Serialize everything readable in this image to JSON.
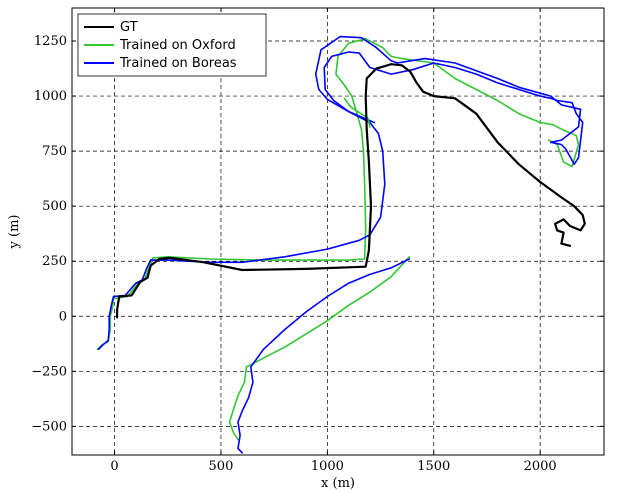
{
  "chart_data": {
    "type": "line",
    "title": "",
    "xlabel": "x (m)",
    "ylabel": "y (m)",
    "xlim": [
      -200,
      2300
    ],
    "ylim": [
      -630,
      1400
    ],
    "xticks": [
      0,
      500,
      1000,
      1500,
      2000
    ],
    "yticks": [
      -500,
      -250,
      0,
      250,
      500,
      750,
      1000,
      1250
    ],
    "xtick_labels": [
      "0",
      "500",
      "1000",
      "1500",
      "2000"
    ],
    "ytick_labels": [
      "−500",
      "−250",
      "0",
      "250",
      "500",
      "750",
      "1000",
      "1250"
    ],
    "grid": true,
    "legend_position": "top-left",
    "series": [
      {
        "name": "GT",
        "color": "#000000",
        "points": [
          [
            12,
            -5
          ],
          [
            12,
            30
          ],
          [
            22,
            90
          ],
          [
            80,
            95
          ],
          [
            120,
            155
          ],
          [
            155,
            175
          ],
          [
            170,
            230
          ],
          [
            210,
            260
          ],
          [
            260,
            265
          ],
          [
            420,
            245
          ],
          [
            600,
            210
          ],
          [
            900,
            215
          ],
          [
            1180,
            225
          ],
          [
            1195,
            300
          ],
          [
            1205,
            500
          ],
          [
            1195,
            700
          ],
          [
            1185,
            850
          ],
          [
            1180,
            1000
          ],
          [
            1185,
            1080
          ],
          [
            1230,
            1125
          ],
          [
            1300,
            1145
          ],
          [
            1350,
            1140
          ],
          [
            1390,
            1110
          ],
          [
            1420,
            1060
          ],
          [
            1450,
            1020
          ],
          [
            1500,
            1000
          ],
          [
            1600,
            990
          ],
          [
            1700,
            920
          ],
          [
            1800,
            790
          ],
          [
            1900,
            690
          ],
          [
            2000,
            610
          ],
          [
            2100,
            540
          ],
          [
            2160,
            500
          ],
          [
            2200,
            460
          ],
          [
            2210,
            420
          ],
          [
            2190,
            390
          ],
          [
            2140,
            410
          ],
          [
            2110,
            440
          ],
          [
            2070,
            420
          ],
          [
            2080,
            390
          ],
          [
            2110,
            380
          ],
          [
            2100,
            330
          ],
          [
            2140,
            320
          ]
        ]
      },
      {
        "name": "Trained on Oxford",
        "color": "#33c633",
        "points": [
          [
            -80,
            -150
          ],
          [
            -60,
            -130
          ],
          [
            -30,
            -115
          ],
          [
            -20,
            -60
          ],
          [
            -20,
            0
          ],
          [
            -10,
            40
          ],
          [
            -5,
            80
          ],
          [
            60,
            90
          ],
          [
            110,
            150
          ],
          [
            140,
            165
          ],
          [
            160,
            215
          ],
          [
            180,
            265
          ],
          [
            250,
            270
          ],
          [
            450,
            260
          ],
          [
            700,
            255
          ],
          [
            900,
            255
          ],
          [
            1100,
            255
          ],
          [
            1175,
            260
          ],
          [
            1180,
            400
          ],
          [
            1175,
            600
          ],
          [
            1170,
            750
          ],
          [
            1160,
            850
          ],
          [
            1115,
            1000
          ],
          [
            1080,
            1050
          ],
          [
            1040,
            1100
          ],
          [
            1050,
            1180
          ],
          [
            1100,
            1240
          ],
          [
            1180,
            1260
          ],
          [
            1260,
            1220
          ],
          [
            1300,
            1180
          ],
          [
            1350,
            1170
          ],
          [
            1500,
            1150
          ],
          [
            1600,
            1080
          ],
          [
            1700,
            1030
          ],
          [
            1800,
            980
          ],
          [
            1900,
            920
          ],
          [
            2000,
            880
          ],
          [
            2060,
            870
          ],
          [
            2100,
            850
          ],
          [
            2170,
            820
          ],
          [
            2180,
            780
          ],
          [
            2150,
            680
          ],
          [
            2110,
            700
          ],
          [
            2080,
            780
          ],
          [
            2040,
            800
          ]
        ]
      },
      {
        "name": "Trained on Oxford",
        "color": "#33c633",
        "points": [
          [
            1385,
            270
          ],
          [
            1300,
            180
          ],
          [
            1200,
            110
          ],
          [
            1100,
            50
          ],
          [
            1000,
            -20
          ],
          [
            900,
            -80
          ],
          [
            800,
            -140
          ],
          [
            700,
            -190
          ],
          [
            620,
            -230
          ],
          [
            610,
            -300
          ],
          [
            580,
            -360
          ],
          [
            560,
            -420
          ],
          [
            540,
            -480
          ],
          [
            560,
            -530
          ],
          [
            580,
            -560
          ]
        ]
      },
      {
        "name": "Trained on Boreas",
        "color": "#0000ff",
        "points": [
          [
            -75,
            -150
          ],
          [
            -55,
            -130
          ],
          [
            -30,
            -110
          ],
          [
            -25,
            -60
          ],
          [
            -25,
            0
          ],
          [
            -15,
            50
          ],
          [
            -5,
            90
          ],
          [
            50,
            95
          ],
          [
            100,
            150
          ],
          [
            130,
            165
          ],
          [
            150,
            215
          ],
          [
            170,
            255
          ],
          [
            250,
            255
          ],
          [
            450,
            245
          ],
          [
            600,
            245
          ],
          [
            800,
            270
          ],
          [
            1000,
            305
          ],
          [
            1150,
            345
          ],
          [
            1200,
            370
          ],
          [
            1250,
            450
          ],
          [
            1270,
            600
          ],
          [
            1260,
            750
          ],
          [
            1240,
            830
          ],
          [
            1200,
            880
          ],
          [
            1100,
            930
          ],
          [
            1030,
            980
          ],
          [
            990,
            1030
          ],
          [
            985,
            1130
          ],
          [
            1020,
            1180
          ],
          [
            1100,
            1200
          ],
          [
            1150,
            1195
          ],
          [
            1200,
            1130
          ],
          [
            1300,
            1100
          ],
          [
            1400,
            1120
          ],
          [
            1500,
            1150
          ],
          [
            1600,
            1130
          ],
          [
            1700,
            1100
          ],
          [
            1800,
            1060
          ],
          [
            1900,
            1030
          ],
          [
            2000,
            1000
          ],
          [
            2050,
            990
          ],
          [
            2080,
            980
          ],
          [
            2150,
            970
          ],
          [
            2170,
            920
          ],
          [
            2200,
            880
          ],
          [
            2190,
            800
          ],
          [
            2180,
            720
          ],
          [
            2160,
            690
          ],
          [
            2120,
            760
          ],
          [
            2100,
            780
          ],
          [
            2050,
            790
          ]
        ]
      },
      {
        "name": "Trained on Boreas",
        "color": "#0000ff",
        "points": [
          [
            1385,
            260
          ],
          [
            1300,
            220
          ],
          [
            1200,
            190
          ],
          [
            1100,
            150
          ],
          [
            1000,
            90
          ],
          [
            900,
            20
          ],
          [
            800,
            -60
          ],
          [
            700,
            -150
          ],
          [
            640,
            -230
          ],
          [
            650,
            -300
          ],
          [
            630,
            -370
          ],
          [
            600,
            -430
          ],
          [
            580,
            -480
          ],
          [
            590,
            -540
          ],
          [
            580,
            -600
          ],
          [
            600,
            -620
          ]
        ]
      },
      {
        "name": "",
        "color": "#0000ff",
        "points": [
          [
            1220,
            880
          ],
          [
            1100,
            930
          ],
          [
            1000,
            985
          ],
          [
            960,
            1030
          ],
          [
            945,
            1100
          ],
          [
            970,
            1210
          ],
          [
            1060,
            1270
          ],
          [
            1160,
            1265
          ],
          [
            1230,
            1220
          ]
        ]
      },
      {
        "name": "",
        "color": "#0000ff",
        "points": [
          [
            1230,
            1220
          ],
          [
            1300,
            1160
          ],
          [
            1330,
            1150
          ],
          [
            1390,
            1160
          ],
          [
            1460,
            1170
          ],
          [
            1600,
            1150
          ],
          [
            1800,
            1080
          ],
          [
            1900,
            1040
          ],
          [
            2050,
            1000
          ],
          [
            2100,
            960
          ],
          [
            2190,
            940
          ],
          [
            2180,
            860
          ],
          [
            2100,
            800
          ],
          [
            2050,
            790
          ]
        ]
      },
      {
        "name": "",
        "color": "#33c633",
        "points": [
          [
            1200,
            860
          ],
          [
            1190,
            900
          ],
          [
            1110,
            950
          ],
          [
            1080,
            990
          ]
        ]
      }
    ],
    "legend": [
      {
        "label": "GT",
        "color": "#000000"
      },
      {
        "label": "Trained on Oxford",
        "color": "#33c633"
      },
      {
        "label": "Trained on Boreas",
        "color": "#0000ff"
      }
    ]
  }
}
